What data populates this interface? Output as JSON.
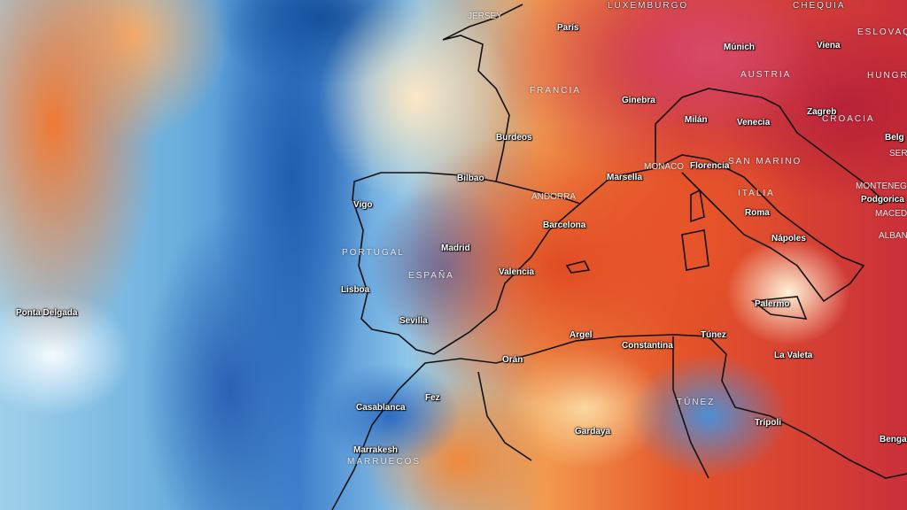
{
  "map": {
    "cities": [
      "París",
      "Múnich",
      "Viena",
      "Ginebra",
      "Milán",
      "Venecia",
      "Zagreb",
      "Burdeos",
      "Bilbao",
      "Marsella",
      "Florencia",
      "Vigo",
      "Barcelona",
      "Roma",
      "Podgorica",
      "Madrid",
      "Nápoles",
      "Valencia",
      "Lisboa",
      "Palermo",
      "Ponta Delgada",
      "Sevilla",
      "Argel",
      "Túnez",
      "Constantina",
      "La Valeta",
      "Orán",
      "Fez",
      "Casablanca",
      "Trípoli",
      "Gardaya",
      "Marrakesh",
      "Benga",
      "Belg"
    ],
    "countries": [
      "LUXEMBURGO",
      "CHEQUIA",
      "ESLOVAQU",
      "HUNGRÍA",
      "AUSTRIA",
      "FRANCIA",
      "CROACIA",
      "SAN MARINO",
      "MONACO",
      "ANDORRA",
      "ITALIA",
      "MONTENEG",
      "MACEDO",
      "ALBAN",
      "SER",
      "PORTUGAL",
      "ESPAÑA",
      "TÚNEZ",
      "MARRUECOS",
      "JERSEY"
    ],
    "color_scale": {
      "cold": "#1f5fb0",
      "neutral": "#f5fbff",
      "warm": "#f08a3c",
      "hot": "#c8324e"
    }
  }
}
